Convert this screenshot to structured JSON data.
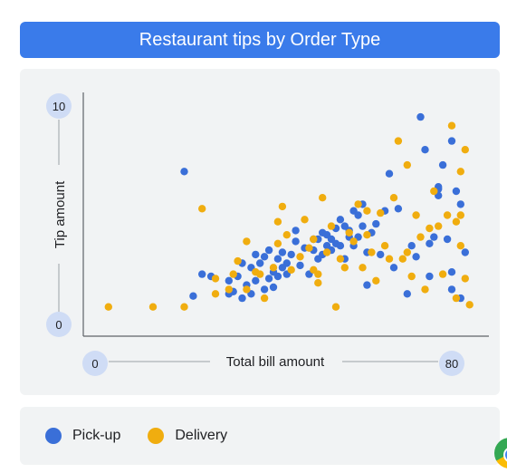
{
  "chart_data": {
    "type": "scatter",
    "title": "Restaurant tips by Order Type",
    "xlabel": "Total bill amount",
    "ylabel": "Tip amount",
    "xlim": [
      0,
      80
    ],
    "ylim": [
      0,
      10
    ],
    "x_ticks": [
      "0",
      "80"
    ],
    "y_ticks": [
      "10",
      "0"
    ],
    "legend_position": "bottom",
    "colors": {
      "Pick-up": "#3a6fd8",
      "Delivery": "#f0ad0f"
    },
    "series": [
      {
        "name": "Pick-up",
        "points": [
          [
            20,
            7.0
          ],
          [
            24,
            2.3
          ],
          [
            26,
            2.2
          ],
          [
            22,
            1.3
          ],
          [
            30,
            1.4
          ],
          [
            30,
            2.0
          ],
          [
            31,
            1.5
          ],
          [
            32,
            2.2
          ],
          [
            33,
            1.2
          ],
          [
            33,
            2.8
          ],
          [
            34,
            1.8
          ],
          [
            35,
            2.6
          ],
          [
            35,
            1.4
          ],
          [
            36,
            3.2
          ],
          [
            36,
            2.0
          ],
          [
            37,
            2.8
          ],
          [
            38,
            1.6
          ],
          [
            38,
            3.1
          ],
          [
            39,
            2.1
          ],
          [
            39,
            3.4
          ],
          [
            40,
            2.4
          ],
          [
            40,
            1.7
          ],
          [
            41,
            3.0
          ],
          [
            41,
            2.2
          ],
          [
            42,
            3.3
          ],
          [
            42,
            2.6
          ],
          [
            43,
            2.8
          ],
          [
            43,
            2.3
          ],
          [
            44,
            3.2
          ],
          [
            45,
            4.3
          ],
          [
            45,
            3.8
          ],
          [
            46,
            2.7
          ],
          [
            47,
            3.5
          ],
          [
            48,
            2.3
          ],
          [
            49,
            3.9
          ],
          [
            49,
            3.4
          ],
          [
            50,
            3.9
          ],
          [
            50,
            3.0
          ],
          [
            51,
            4.2
          ],
          [
            51,
            3.2
          ],
          [
            52,
            3.6
          ],
          [
            52,
            4.1
          ],
          [
            53,
            3.9
          ],
          [
            53,
            3.4
          ],
          [
            54,
            4.4
          ],
          [
            54,
            3.7
          ],
          [
            55,
            4.8
          ],
          [
            55,
            3.6
          ],
          [
            56,
            4.5
          ],
          [
            56,
            3.0
          ],
          [
            57,
            4.3
          ],
          [
            57,
            4.0
          ],
          [
            58,
            5.2
          ],
          [
            58,
            3.6
          ],
          [
            59,
            5.0
          ],
          [
            59,
            4.0
          ],
          [
            60,
            5.5
          ],
          [
            60,
            4.5
          ],
          [
            61,
            3.3
          ],
          [
            61,
            1.8
          ],
          [
            62,
            4.2
          ],
          [
            63,
            4.6
          ],
          [
            64,
            3.2
          ],
          [
            65,
            5.2
          ],
          [
            66,
            6.9
          ],
          [
            67,
            2.6
          ],
          [
            68,
            5.3
          ],
          [
            70,
            1.4
          ],
          [
            71,
            3.6
          ],
          [
            72,
            3.1
          ],
          [
            73,
            9.5
          ],
          [
            74,
            8.0
          ],
          [
            75,
            3.7
          ],
          [
            75,
            2.2
          ],
          [
            76,
            4.0
          ],
          [
            77,
            6.2
          ],
          [
            77,
            6.3
          ],
          [
            77,
            5.9
          ],
          [
            78,
            7.3
          ],
          [
            79,
            3.9
          ],
          [
            80,
            1.6
          ],
          [
            80,
            8.4
          ],
          [
            81,
            6.1
          ],
          [
            82,
            1.2
          ],
          [
            82,
            5.5
          ],
          [
            83,
            3.3
          ],
          [
            80,
            2.4
          ]
        ]
      },
      {
        "name": "Delivery",
        "points": [
          [
            3,
            0.8
          ],
          [
            13,
            0.8
          ],
          [
            20,
            0.8
          ],
          [
            24,
            5.3
          ],
          [
            27,
            2.1
          ],
          [
            27,
            1.4
          ],
          [
            30,
            1.6
          ],
          [
            31,
            2.3
          ],
          [
            32,
            2.9
          ],
          [
            34,
            3.8
          ],
          [
            34,
            1.6
          ],
          [
            36,
            2.4
          ],
          [
            37,
            2.3
          ],
          [
            38,
            1.2
          ],
          [
            40,
            2.6
          ],
          [
            41,
            4.7
          ],
          [
            41,
            3.7
          ],
          [
            42,
            5.4
          ],
          [
            43,
            4.1
          ],
          [
            44,
            2.5
          ],
          [
            46,
            3.1
          ],
          [
            47,
            4.8
          ],
          [
            48,
            3.5
          ],
          [
            49,
            3.9
          ],
          [
            49,
            2.5
          ],
          [
            50,
            2.3
          ],
          [
            50,
            1.9
          ],
          [
            51,
            5.8
          ],
          [
            52,
            3.3
          ],
          [
            53,
            4.5
          ],
          [
            54,
            0.8
          ],
          [
            55,
            3.0
          ],
          [
            56,
            2.6
          ],
          [
            57,
            4.2
          ],
          [
            58,
            3.8
          ],
          [
            59,
            5.5
          ],
          [
            60,
            2.6
          ],
          [
            61,
            4.1
          ],
          [
            61,
            5.2
          ],
          [
            62,
            3.3
          ],
          [
            63,
            2.0
          ],
          [
            64,
            5.1
          ],
          [
            65,
            3.6
          ],
          [
            66,
            3.0
          ],
          [
            67,
            5.8
          ],
          [
            68,
            8.4
          ],
          [
            69,
            3.0
          ],
          [
            70,
            7.3
          ],
          [
            70,
            3.3
          ],
          [
            71,
            2.2
          ],
          [
            72,
            5.0
          ],
          [
            73,
            4.0
          ],
          [
            74,
            1.6
          ],
          [
            75,
            4.4
          ],
          [
            76,
            6.1
          ],
          [
            77,
            4.5
          ],
          [
            78,
            2.3
          ],
          [
            79,
            5.0
          ],
          [
            80,
            9.1
          ],
          [
            81,
            1.2
          ],
          [
            81,
            4.7
          ],
          [
            82,
            3.6
          ],
          [
            82,
            5.0
          ],
          [
            83,
            2.1
          ],
          [
            83,
            8.0
          ],
          [
            84,
            0.9
          ],
          [
            82,
            7.0
          ]
        ]
      }
    ]
  },
  "legend": {
    "items": [
      {
        "label": "Pick-up",
        "color": "#3a6fd8"
      },
      {
        "label": "Delivery",
        "color": "#f0ad0f"
      }
    ]
  },
  "colors": {
    "title_bar": "#3a7bea",
    "card_bg": "#f1f3f4",
    "tick_badge": "#cfdcf5"
  }
}
